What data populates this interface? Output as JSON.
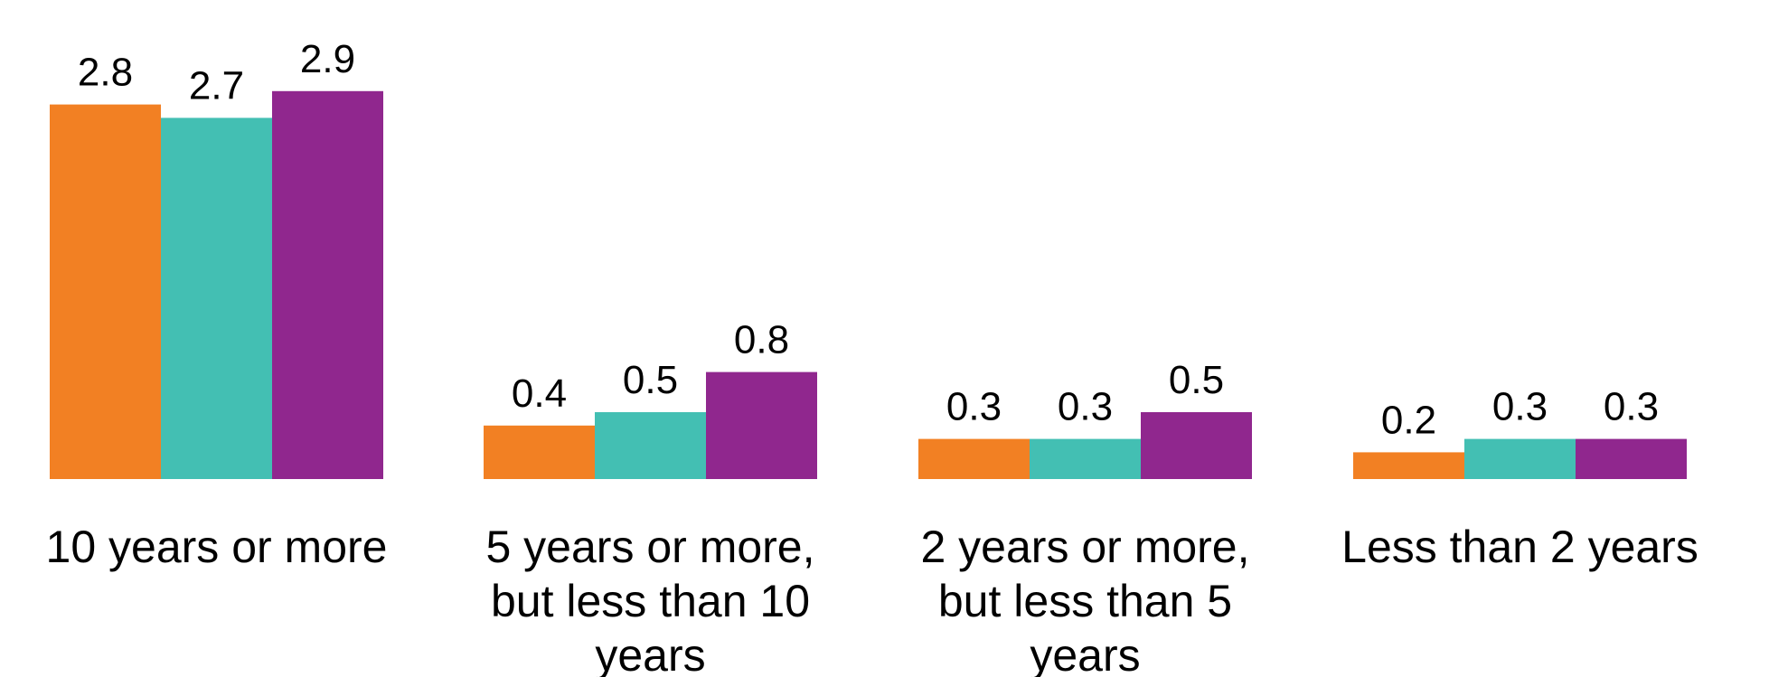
{
  "chart_data": {
    "type": "bar",
    "categories": [
      "10 years or more",
      "5 years or more, but less than 10 years",
      "2 years or more, but less than 5 years",
      "Less than 2 years"
    ],
    "category_lines": [
      [
        "10 years or more"
      ],
      [
        "5 years or more,",
        "but less than 10",
        "years"
      ],
      [
        "2 years or more,",
        "but less than 5",
        "years"
      ],
      [
        "Less than 2 years"
      ]
    ],
    "series": [
      {
        "color": "#f28023",
        "values": [
          2.8,
          0.4,
          0.3,
          0.2
        ],
        "labels": [
          "2.8",
          "0.4",
          "0.3",
          "0.2"
        ]
      },
      {
        "color": "#43bfb3",
        "values": [
          2.7,
          0.5,
          0.3,
          0.3
        ],
        "labels": [
          "2.7",
          "0.5",
          "0.3",
          "0.3"
        ]
      },
      {
        "color": "#90278e",
        "values": [
          2.9,
          0.8,
          0.5,
          0.3
        ],
        "labels": [
          "2.9",
          "0.8",
          "0.5",
          "0.3"
        ]
      }
    ],
    "ylim": [
      0,
      3
    ],
    "grid": false,
    "legend": "none",
    "title": "",
    "xlabel": "",
    "ylabel": ""
  }
}
